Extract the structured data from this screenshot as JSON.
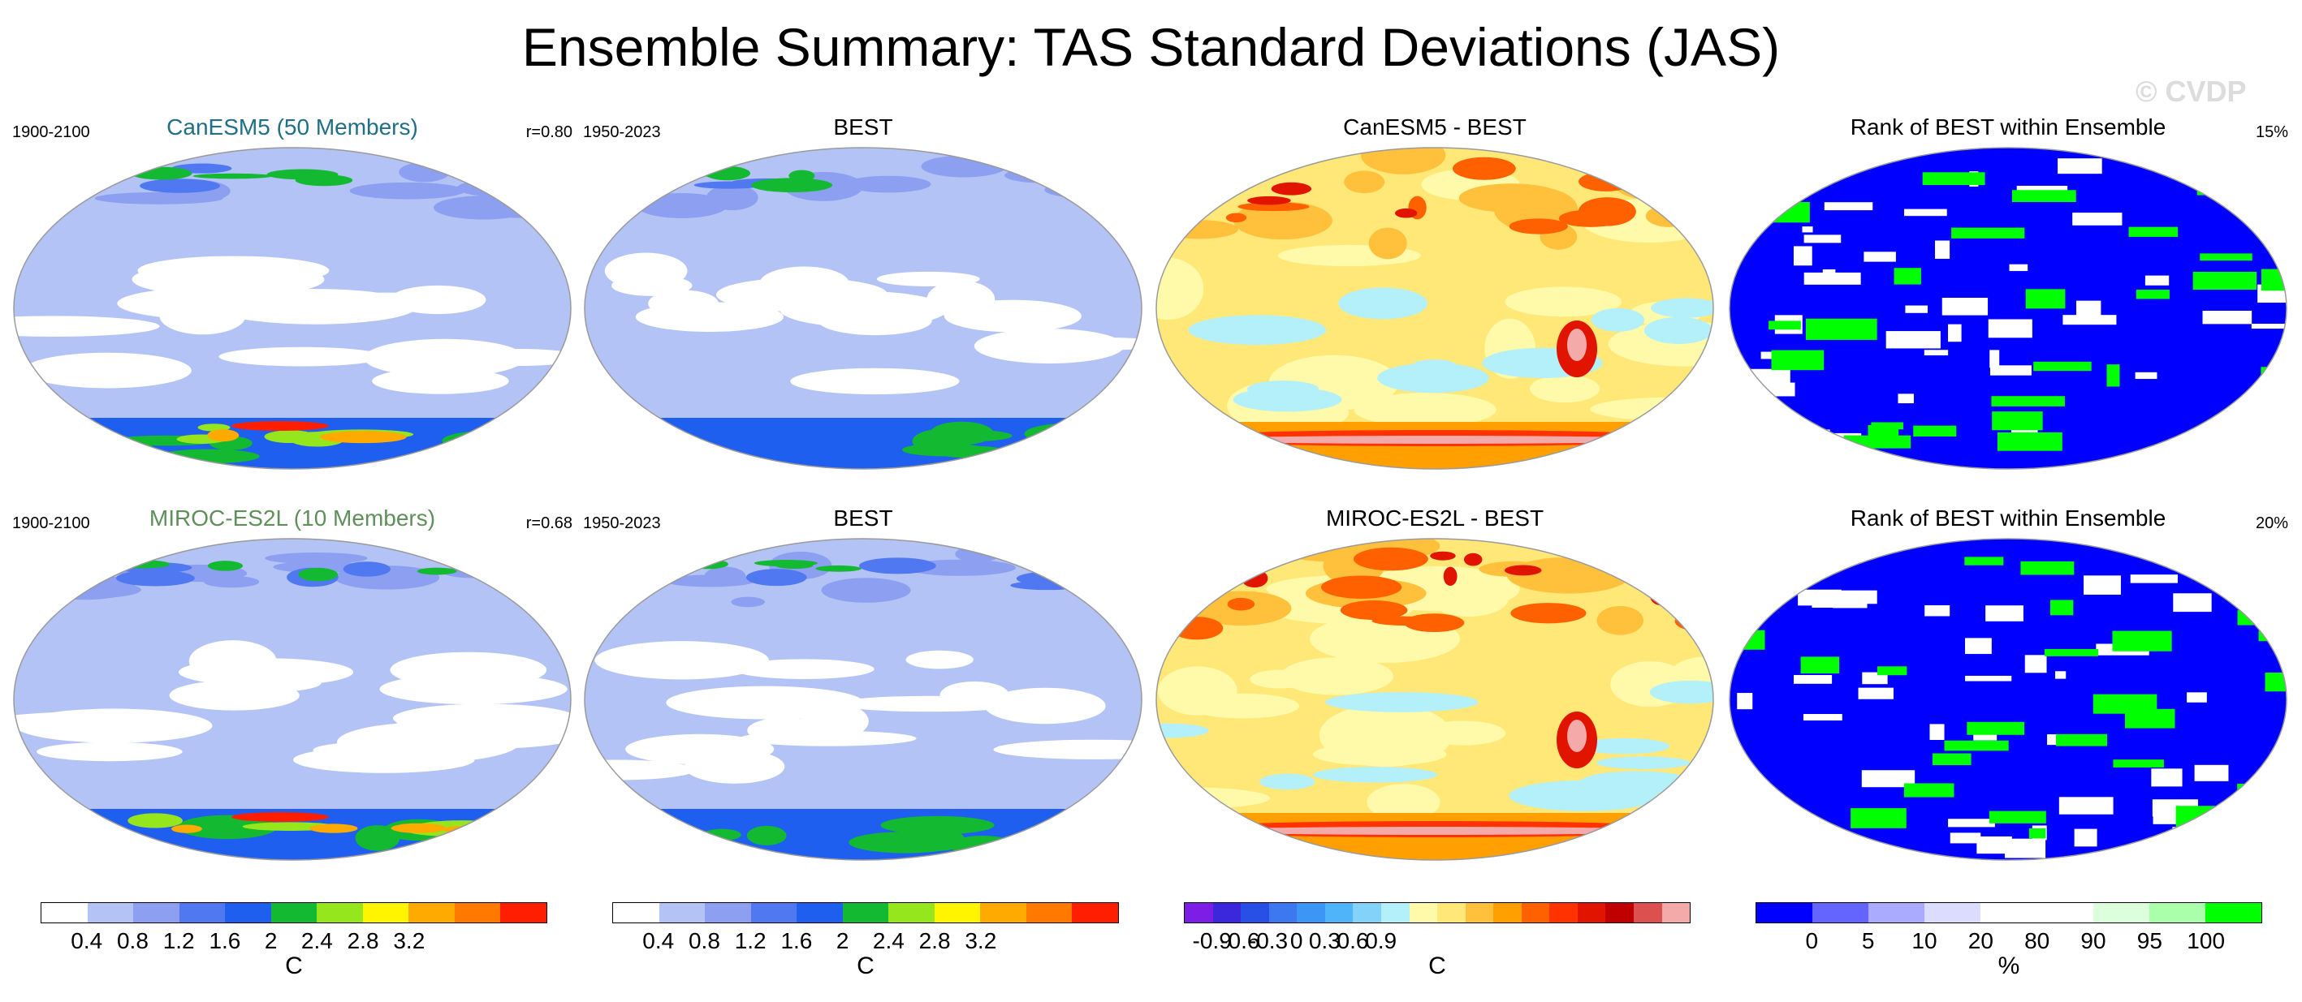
{
  "title": "Ensemble Summary: TAS Standard Deviations (JAS)",
  "watermark": "© CVDP",
  "panels": [
    {
      "title": "CanESM5 (50 Members)",
      "title_color": "#1f6f86",
      "left": "1900-2100",
      "right": "r=0.80"
    },
    {
      "title": "BEST",
      "title_color": "#000000",
      "left": "1950-2023",
      "right": ""
    },
    {
      "title": "CanESM5 - BEST",
      "title_color": "#000000",
      "left": "",
      "right": ""
    },
    {
      "title": "Rank of BEST within Ensemble",
      "title_color": "#000000",
      "left": "",
      "right": "15%"
    },
    {
      "title": "MIROC-ES2L (10 Members)",
      "title_color": "#5f8f5a",
      "left": "1900-2100",
      "right": "r=0.68"
    },
    {
      "title": "BEST",
      "title_color": "#000000",
      "left": "1950-2023",
      "right": ""
    },
    {
      "title": "MIROC-ES2L - BEST",
      "title_color": "#000000",
      "left": "",
      "right": ""
    },
    {
      "title": "Rank of BEST within Ensemble",
      "title_color": "#000000",
      "left": "",
      "right": "20%"
    }
  ],
  "colorbars": [
    {
      "colors": [
        "#ffffff",
        "#b4c3f5",
        "#8c9ff0",
        "#5078f0",
        "#1e5ff0",
        "#14b932",
        "#96e61e",
        "#fff500",
        "#ffaa00",
        "#ff7800",
        "#ff1e00"
      ],
      "labels": [
        "0.4",
        "0.8",
        "1.2",
        "1.6",
        "2",
        "2.4",
        "2.8",
        "3.2"
      ],
      "units": "C"
    },
    {
      "colors": [
        "#ffffff",
        "#b4c3f5",
        "#8c9ff0",
        "#5078f0",
        "#1e5ff0",
        "#14b932",
        "#96e61e",
        "#fff500",
        "#ffaa00",
        "#ff7800",
        "#ff1e00"
      ],
      "labels": [
        "0.4",
        "0.8",
        "1.2",
        "1.6",
        "2",
        "2.4",
        "2.8",
        "3.2"
      ],
      "units": "C"
    },
    {
      "colors": [
        "#7d1ee6",
        "#3c28dc",
        "#2850e6",
        "#3c78f0",
        "#3c96f5",
        "#50b4fa",
        "#82d2fa",
        "#b4f0fa",
        "#fffaaa",
        "#ffe878",
        "#ffc03c",
        "#ffa000",
        "#ff6000",
        "#ff3200",
        "#e11400",
        "#c00000",
        "#dc5050",
        "#f5aaaa"
      ],
      "labels": [
        "-0.9",
        "-0.6",
        "-0.3",
        "0",
        "0.3",
        "0.6",
        "0.9"
      ],
      "units": "C"
    },
    {
      "colors": [
        "#0000ff",
        "#6464ff",
        "#aaaaff",
        "#dcdcff",
        "#ffffff",
        "#ffffff",
        "#dcffdc",
        "#aaffaa",
        "#00ff00"
      ],
      "labels": [
        "0",
        "5",
        "10",
        "20",
        "80",
        "90",
        "95",
        "100"
      ],
      "units": "%"
    }
  ],
  "chart_data": {
    "type": "heatmap",
    "title": "Ensemble Summary: TAS Standard Deviations (JAS)",
    "panels": [
      {
        "name": "CanESM5 (50 Members)",
        "period": "1900-2100",
        "pattern_correlation": 0.8,
        "units": "C",
        "levels": [
          0.4,
          0.8,
          1.2,
          1.6,
          2,
          2.4,
          2.8,
          3.2
        ]
      },
      {
        "name": "BEST",
        "period": "1950-2023",
        "units": "C",
        "levels": [
          0.4,
          0.8,
          1.2,
          1.6,
          2,
          2.4,
          2.8,
          3.2
        ]
      },
      {
        "name": "CanESM5 - BEST",
        "units": "C",
        "levels": [
          -0.9,
          -0.6,
          -0.3,
          0,
          0.3,
          0.6,
          0.9
        ]
      },
      {
        "name": "Rank of BEST within Ensemble",
        "percent": 15,
        "units": "%",
        "levels": [
          0,
          5,
          10,
          20,
          80,
          90,
          95,
          100
        ]
      },
      {
        "name": "MIROC-ES2L (10 Members)",
        "period": "1900-2100",
        "pattern_correlation": 0.68,
        "units": "C",
        "levels": [
          0.4,
          0.8,
          1.2,
          1.6,
          2,
          2.4,
          2.8,
          3.2
        ]
      },
      {
        "name": "BEST",
        "period": "1950-2023",
        "units": "C",
        "levels": [
          0.4,
          0.8,
          1.2,
          1.6,
          2,
          2.4,
          2.8,
          3.2
        ]
      },
      {
        "name": "MIROC-ES2L - BEST",
        "units": "C",
        "levels": [
          -0.9,
          -0.6,
          -0.3,
          0,
          0.3,
          0.6,
          0.9
        ]
      },
      {
        "name": "Rank of BEST within Ensemble",
        "percent": 20,
        "units": "%",
        "levels": [
          0,
          5,
          10,
          20,
          80,
          90,
          95,
          100
        ]
      }
    ]
  }
}
